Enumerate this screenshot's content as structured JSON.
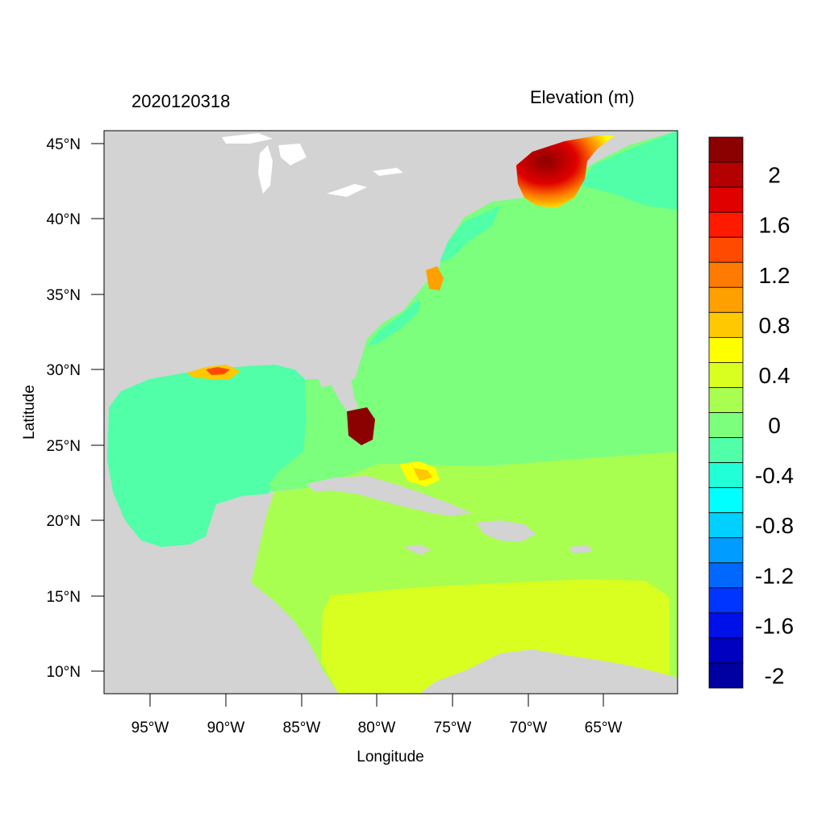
{
  "header": {
    "date_label": "2020120318",
    "variable_label": "Elevation (m)"
  },
  "axes": {
    "xlabel": "Longitude",
    "ylabel": "Latitude",
    "x_ticks": [
      "95°W",
      "90°W",
      "85°W",
      "80°W",
      "75°W",
      "70°W",
      "65°W"
    ],
    "y_ticks": [
      "45°N",
      "40°N",
      "35°N",
      "30°N",
      "25°N",
      "20°N",
      "15°N",
      "10°N"
    ]
  },
  "colorbar": {
    "labels": [
      "2",
      "1.6",
      "1.2",
      "0.8",
      "0.4",
      "0",
      "-0.4",
      "-0.8",
      "-1.2",
      "-1.6",
      "-2"
    ],
    "colors": [
      "#8b0000",
      "#b40000",
      "#e00000",
      "#ff1a00",
      "#ff4a00",
      "#ff7a00",
      "#ffa000",
      "#ffc800",
      "#ffff00",
      "#d9ff20",
      "#a8ff50",
      "#7cff7c",
      "#50ffa8",
      "#20ffd6",
      "#00ffff",
      "#00d0ff",
      "#009cff",
      "#0068ff",
      "#0034ff",
      "#0010e8",
      "#0000c0",
      "#0000a0"
    ]
  },
  "map": {
    "land_color": "#d3d3d3",
    "water_color": "#ffffff"
  },
  "chart_data": {
    "type": "heatmap",
    "title": "Elevation (m)",
    "subtitle": "2020120318",
    "xlabel": "Longitude",
    "ylabel": "Latitude",
    "xlim": [
      -98.2,
      -60.4
    ],
    "ylim": [
      8.5,
      45.8
    ],
    "color_levels": [
      2,
      1.6,
      1.2,
      0.8,
      0.4,
      0,
      -0.4,
      -0.8,
      -1.2,
      -1.6,
      -2
    ]
  }
}
